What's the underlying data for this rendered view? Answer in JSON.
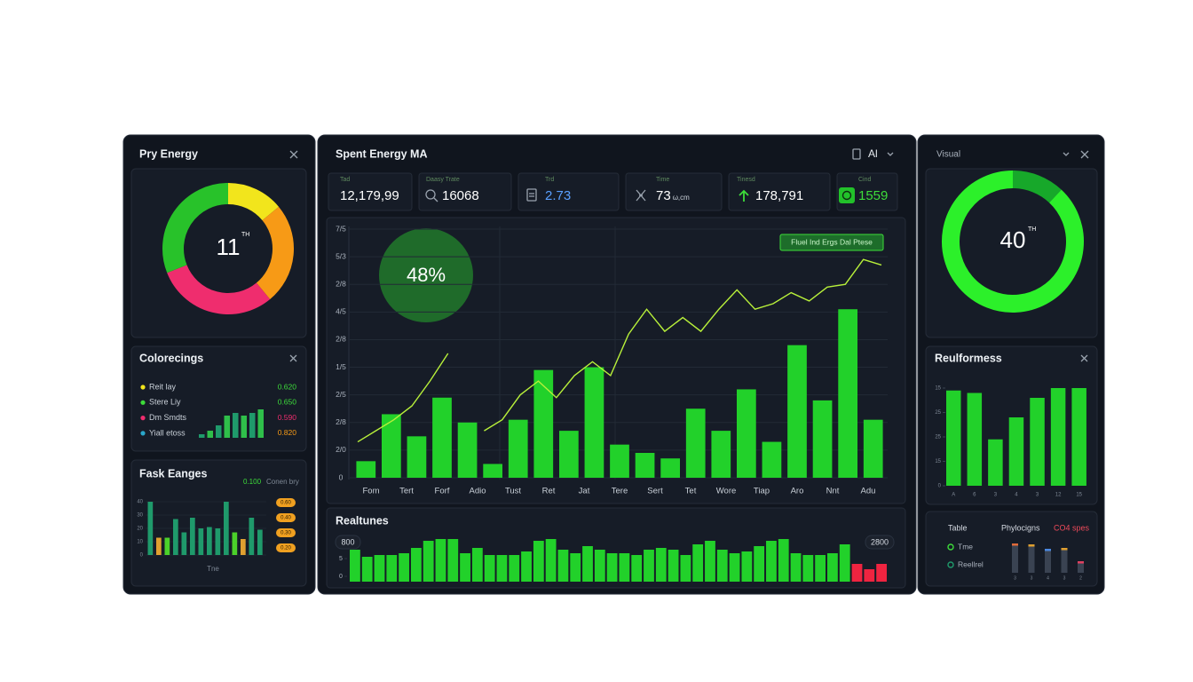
{
  "left": {
    "energy": {
      "title": "Pry Energy",
      "center": "11",
      "sup": "TH",
      "segments": [
        {
          "value": 14,
          "color": "#f2e51c"
        },
        {
          "value": 25,
          "color": "#f79a16"
        },
        {
          "value": 30,
          "color": "#ef2d6e"
        },
        {
          "value": 31,
          "color": "#28c22a"
        }
      ]
    },
    "legend": {
      "title": "Colorecings",
      "items": [
        {
          "label": "Reit lay",
          "value": "0.620",
          "dot": "#f2e51c",
          "color": "#3ddc3a"
        },
        {
          "label": "Stere Liy",
          "value": "0.650",
          "dot": "#3ddc3a",
          "color": "#3ddc3a"
        },
        {
          "label": "Dm Smdts",
          "value": "0.590",
          "dot": "#ef2d6e",
          "color": "#ef2d6e"
        },
        {
          "label": "Yiall etoss",
          "value": "0.820",
          "dot": "#2aa6c9",
          "color": "#f79a16"
        }
      ],
      "bars": [
        4,
        8,
        14,
        25,
        28,
        25,
        28,
        32
      ],
      "bar_colors": [
        "#1f9a6b",
        "#2fbf4a",
        "#1f9a6b",
        "#2fbf4a",
        "#1f9a6b",
        "#2fbf4a",
        "#1f9a6b",
        "#2fbf4a"
      ]
    },
    "ranges": {
      "title": "Fask Eanges",
      "note_value": "0.100",
      "note_label": "Conen bry",
      "ylim": [
        0,
        40
      ],
      "yticks": [
        40,
        30,
        20,
        10,
        0
      ],
      "bars": [
        40,
        13,
        13,
        27,
        17,
        28,
        20,
        21,
        20,
        40,
        17,
        12,
        28,
        19
      ],
      "bar_colors": [
        "#1f9a6b",
        "#e0a030",
        "#4bd12a",
        "#1f9a6b",
        "#1f9a6b",
        "#1f9a6b",
        "#1f9a6b",
        "#1f9a6b",
        "#1f9a6b",
        "#1f9a6b",
        "#4bd12a",
        "#e0a030",
        "#1f9a6b",
        "#1f9a6b"
      ],
      "tags": [
        "0.60",
        "0.40",
        "0.30",
        "0.20"
      ],
      "xlabel": "Tne"
    }
  },
  "main": {
    "title": "Spent Energy MA",
    "menu": "Al",
    "stats": [
      {
        "label": "Tad",
        "value": "12,179,99",
        "color": "#ffffff"
      },
      {
        "label": "Daasy Trate",
        "value": "16068",
        "color": "#ffffff"
      },
      {
        "label": "Trd",
        "value": "2.73",
        "color": "#5aa0ff"
      },
      {
        "label": "Time",
        "value": "73",
        "unit": "ω,cm",
        "color": "#ffffff"
      },
      {
        "label": "Tinesd",
        "value": "178,791",
        "color": "#ffffff"
      },
      {
        "label": "Cind",
        "value": "1559",
        "color": "#3ddc3a"
      }
    ],
    "chart": {
      "ylim": [
        0,
        9
      ],
      "yticks": [
        0,
        {
          "value": 1,
          "label": "2/0"
        },
        {
          "value": 2,
          "label": "2/8"
        },
        {
          "value": 3,
          "label": "2/5"
        },
        {
          "value": 4,
          "label": "1/5"
        },
        {
          "value": 5,
          "label": "2/8"
        },
        {
          "value": 6,
          "label": "4/5"
        },
        {
          "value": 7,
          "label": "2/8"
        },
        {
          "value": 8,
          "label": "5/3"
        },
        {
          "value": 9,
          "label": "7/5"
        }
      ],
      "categories": [
        "Fom",
        "Tert",
        "Forf",
        "Adio",
        "Tust",
        "Ret",
        "Jat",
        "Tere",
        "Sert",
        "Tet",
        "Wore",
        "Tiap",
        "Aro",
        "Nnt",
        "Adu"
      ],
      "bar_color": "#22d12a",
      "bars": [
        0.6,
        2.3,
        1.5,
        2.9,
        2.0,
        0.5,
        2.1,
        3.9,
        1.7,
        4.0,
        1.2,
        0.9,
        0.7,
        2.5,
        1.7,
        3.2,
        1.3,
        4.8,
        2.8,
        6.1,
        2.1
      ],
      "line_color": "#b8f03a",
      "line": [
        1.3,
        1.7,
        2.1,
        2.6,
        3.5,
        4.5,
        null,
        1.7,
        2.1,
        3.0,
        3.5,
        2.9,
        3.7,
        4.2,
        3.7,
        5.2,
        6.1,
        5.3,
        5.8,
        5.3,
        6.1,
        6.8,
        6.1,
        6.3,
        6.7,
        6.4,
        6.9,
        7.0,
        7.9,
        7.7
      ],
      "bubble": "48%",
      "tag": "Fluel Ind Ergs Dal Ptese"
    },
    "realtime": {
      "title": "Realtunes",
      "badge_left": "800",
      "badge_right": "2800",
      "yticks": [
        {
          "value": 1,
          "label": "5"
        },
        0
      ],
      "bars": [
        1.8,
        1.4,
        1.5,
        1.5,
        1.6,
        1.9,
        2.3,
        2.4,
        2.4,
        1.6,
        1.9,
        1.5,
        1.5,
        1.5,
        1.7,
        2.3,
        2.4,
        1.8,
        1.6,
        2.0,
        1.8,
        1.6,
        1.6,
        1.5,
        1.8,
        1.9,
        1.8,
        1.5,
        2.1,
        2.3,
        1.8,
        1.6,
        1.7,
        2.0,
        2.3,
        2.4,
        1.6,
        1.5,
        1.5,
        1.6,
        2.1,
        1.0,
        0.7,
        1.0
      ],
      "colors": [
        "#22d12a",
        "#22d12a",
        "#22d12a",
        "#22d12a",
        "#22d12a",
        "#22d12a",
        "#22d12a",
        "#22d12a",
        "#22d12a",
        "#22d12a",
        "#22d12a",
        "#22d12a",
        "#22d12a",
        "#22d12a",
        "#22d12a",
        "#22d12a",
        "#22d12a",
        "#22d12a",
        "#22d12a",
        "#22d12a",
        "#22d12a",
        "#22d12a",
        "#22d12a",
        "#22d12a",
        "#22d12a",
        "#22d12a",
        "#22d12a",
        "#22d12a",
        "#22d12a",
        "#22d12a",
        "#22d12a",
        "#22d12a",
        "#22d12a",
        "#22d12a",
        "#22d12a",
        "#22d12a",
        "#22d12a",
        "#22d12a",
        "#22d12a",
        "#22d12a",
        "#22d12a",
        "#ef2440",
        "#ef2440",
        "#ef2440"
      ]
    }
  },
  "right": {
    "visual": {
      "title": "Visual",
      "center": "40",
      "sup": "TH",
      "segments": [
        {
          "value": 12,
          "color": "#17a82a"
        },
        {
          "value": 88,
          "color": "#2cf02a"
        }
      ]
    },
    "perf": {
      "title": "Reulformess",
      "color": "#22d12a",
      "ylim": [
        0,
        4
      ],
      "yticks": [
        0,
        {
          "value": 1,
          "label": "15"
        },
        {
          "value": 2,
          "label": "25"
        },
        {
          "value": 3,
          "label": "25"
        },
        {
          "value": 4,
          "label": "15"
        }
      ],
      "categories": [
        "A",
        "6",
        "3",
        "4",
        "3",
        "12",
        "15"
      ],
      "values": [
        3.9,
        3.8,
        1.9,
        2.8,
        3.6,
        4.0,
        4.0
      ]
    },
    "table": {
      "headers": [
        "Table",
        "Phylocigns",
        "CO4 spes"
      ],
      "legend": [
        {
          "label": "Tme",
          "color": "#3ddc3a"
        },
        {
          "label": "Reellrel",
          "color": "#1f9a6b"
        }
      ],
      "bars": [
        33,
        32,
        27,
        28,
        13
      ],
      "tips": [
        "#e06a3a",
        "#e0a030",
        "#4b88e0",
        "#e0a030",
        "#e04060"
      ],
      "categories": [
        "3",
        "3",
        "4",
        "3",
        "2"
      ]
    }
  }
}
